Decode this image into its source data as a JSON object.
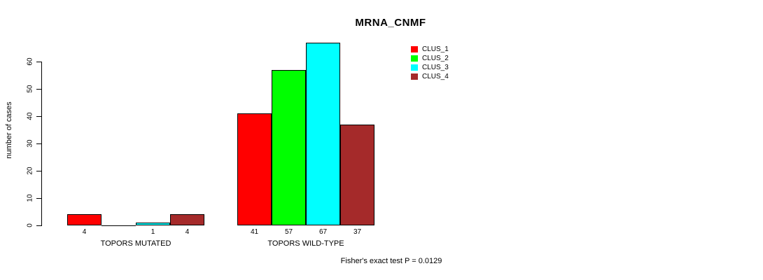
{
  "chart_data": {
    "type": "bar",
    "title": "MRNA_CNMF",
    "ylabel": "number of cases",
    "xlabel": "",
    "ylim": [
      0,
      60
    ],
    "yticks": [
      0,
      10,
      20,
      30,
      40,
      50,
      60
    ],
    "grid": false,
    "legend_position": "top-right",
    "series": [
      {
        "name": "CLUS_1",
        "color": "#FF0000"
      },
      {
        "name": "CLUS_2",
        "color": "#00FF00"
      },
      {
        "name": "CLUS_3",
        "color": "#00FFFF"
      },
      {
        "name": "CLUS_4",
        "color": "#A52A2A"
      }
    ],
    "groups": [
      {
        "label": "TOPORS MUTATED",
        "values": [
          4,
          0,
          1,
          4
        ],
        "value_labels": [
          "4",
          "",
          "1",
          "4"
        ]
      },
      {
        "label": "TOPORS WILD-TYPE",
        "values": [
          41,
          57,
          67,
          37
        ],
        "value_labels": [
          "41",
          "57",
          "67",
          "37"
        ]
      }
    ],
    "annotation": "Fisher's exact test P = 0.0129"
  }
}
